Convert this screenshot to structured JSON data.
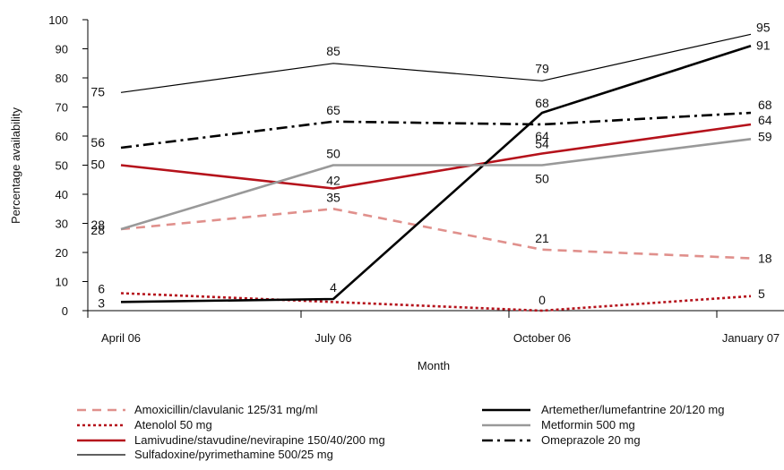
{
  "chart_data": {
    "type": "line",
    "xlabel": "Month",
    "ylabel": "Percentage availability",
    "ylim": [
      0,
      100
    ],
    "yticks": [
      0,
      10,
      20,
      30,
      40,
      50,
      60,
      70,
      80,
      90,
      100
    ],
    "categories": [
      "April 06",
      "July 06",
      "October 06",
      "January 07"
    ],
    "grid": false,
    "legend_position": "bottom",
    "series": [
      {
        "name": "Amoxicillin/clavulanic 125/31 mg/ml",
        "values": [
          28,
          35,
          21,
          18
        ],
        "color": "#e0908c",
        "style": "dashed"
      },
      {
        "name": "Atenolol 50 mg",
        "values": [
          6,
          3,
          0,
          5
        ],
        "color": "#b5121b",
        "style": "dotted"
      },
      {
        "name": "Lamivudine/stavudine/nevirapine 150/40/200 mg",
        "values": [
          50,
          42,
          54,
          64
        ],
        "color": "#b5121b",
        "style": "solid"
      },
      {
        "name": "Sulfadoxine/pyrimethamine 500/25 mg",
        "values": [
          75,
          85,
          79,
          95
        ],
        "color": "#000000",
        "style": "thin"
      },
      {
        "name": "Artemether/lumefantrine 20/120 mg",
        "values": [
          3,
          4,
          68,
          91
        ],
        "color": "#000000",
        "style": "thick"
      },
      {
        "name": "Metformin 500 mg",
        "values": [
          28,
          50,
          50,
          59
        ],
        "color": "#999999",
        "style": "solid"
      },
      {
        "name": "Omeprazole 20 mg",
        "values": [
          56,
          65,
          64,
          68
        ],
        "color": "#000000",
        "style": "dashdot"
      }
    ]
  }
}
